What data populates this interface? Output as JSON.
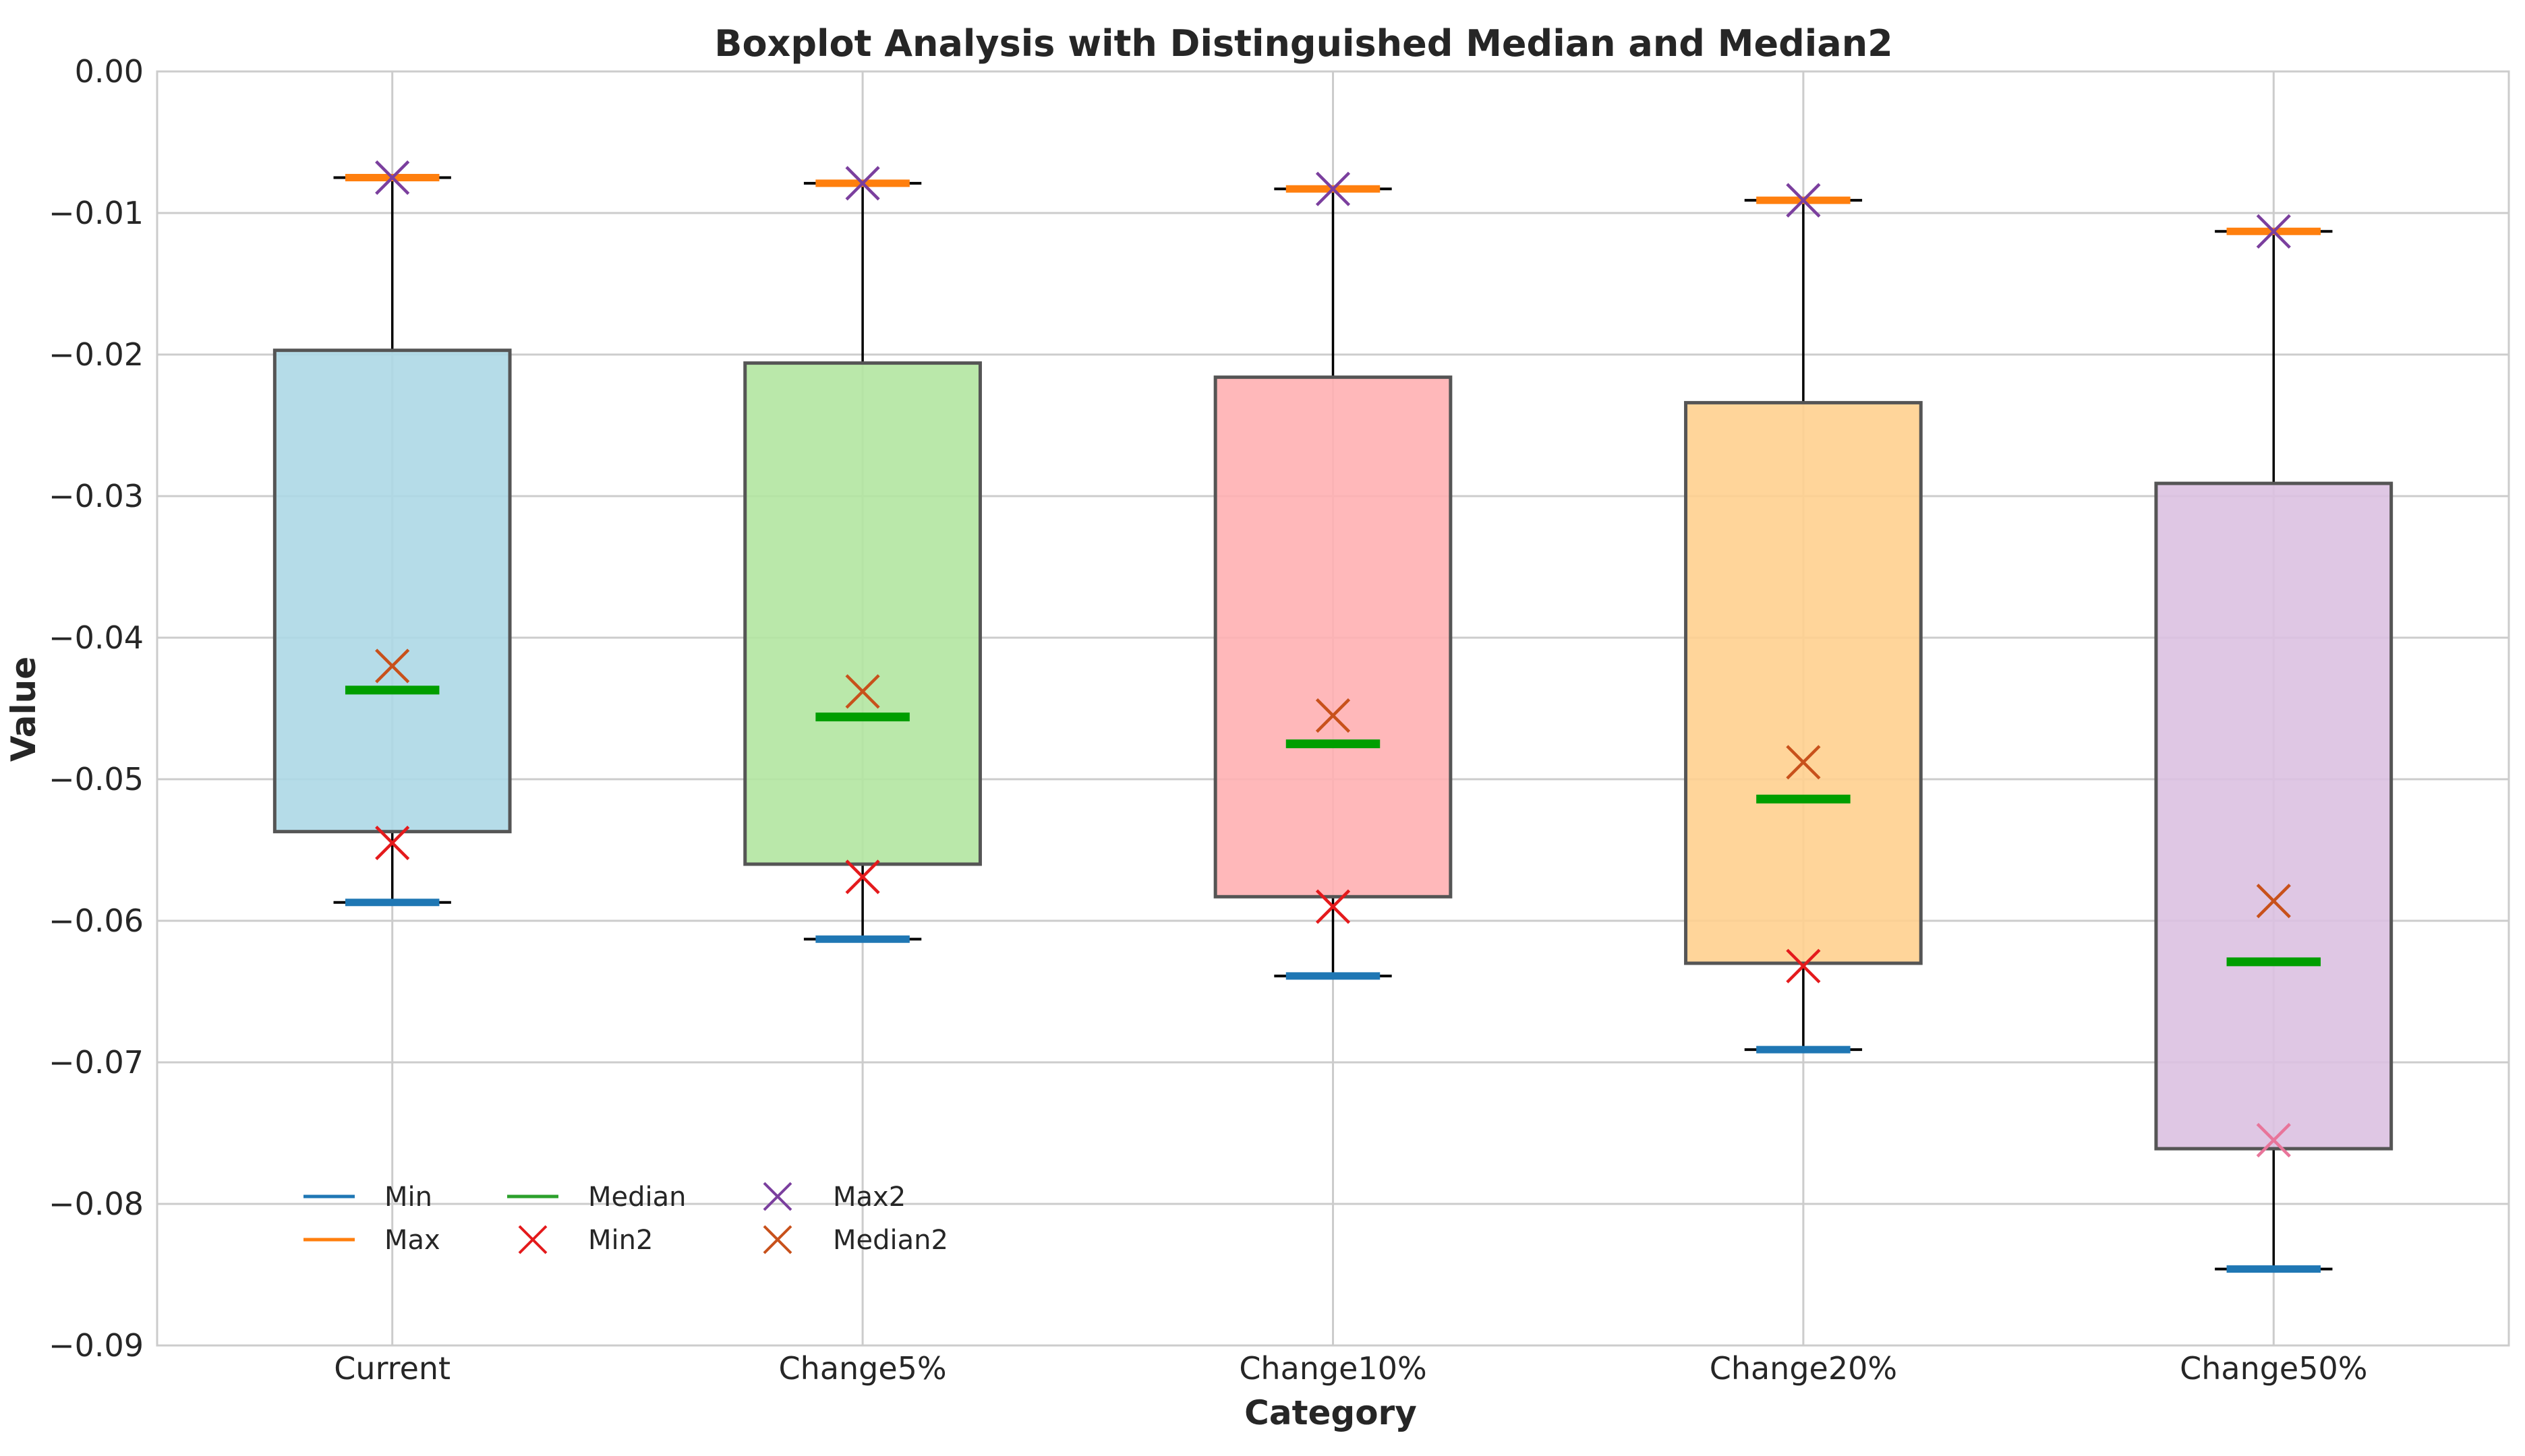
{
  "chart_data": {
    "type": "box",
    "title": "Boxplot Analysis with Distinguished Median and Median2",
    "xlabel": "Category",
    "ylabel": "Value",
    "ylim": [
      -0.09,
      0.0
    ],
    "yticks": [
      0.0,
      -0.01,
      -0.02,
      -0.03,
      -0.04,
      -0.05,
      -0.06,
      -0.07,
      -0.08,
      -0.09
    ],
    "ytick_labels": [
      "0.00",
      "−0.01",
      "−0.02",
      "−0.03",
      "−0.04",
      "−0.05",
      "−0.06",
      "−0.07",
      "−0.08",
      "−0.09"
    ],
    "grid": true,
    "legend_position": "lower-left",
    "categories": [
      "Current",
      "Change5%",
      "Change10%",
      "Change20%",
      "Change50%"
    ],
    "box_colors": [
      "#add8e6",
      "#b3e6a1",
      "#ffb0b3",
      "#ffd08f",
      "#dcc1e1"
    ],
    "series": {
      "min": [
        -0.0587,
        -0.0613,
        -0.0639,
        -0.0691,
        -0.0846
      ],
      "q1": [
        -0.0537,
        -0.056,
        -0.0583,
        -0.063,
        -0.0761
      ],
      "median": [
        -0.0437,
        -0.0456,
        -0.0475,
        -0.0514,
        -0.0629
      ],
      "q3": [
        -0.0197,
        -0.0206,
        -0.0216,
        -0.0234,
        -0.0291
      ],
      "max": [
        -0.0075,
        -0.0079,
        -0.0083,
        -0.0091,
        -0.0113
      ],
      "min2": [
        -0.0545,
        -0.0569,
        -0.059,
        -0.0632,
        -0.0755
      ],
      "median2": [
        -0.042,
        -0.0438,
        -0.0455,
        -0.0488,
        -0.0586
      ],
      "max2": [
        -0.0075,
        -0.0079,
        -0.0083,
        -0.0091,
        -0.0113
      ]
    },
    "legend": [
      {
        "label": "Min",
        "kind": "line",
        "color": "#1f77b4"
      },
      {
        "label": "Max",
        "kind": "line",
        "color": "#ff7f0e"
      },
      {
        "label": "Median",
        "kind": "line",
        "color": "#2ca02c"
      },
      {
        "label": "Min2",
        "kind": "x",
        "color": "#e41a1c"
      },
      {
        "label": "Max2",
        "kind": "x",
        "color": "#7b3f9e"
      },
      {
        "label": "Median2",
        "kind": "x",
        "color": "#c8511b"
      }
    ],
    "marker_colors": {
      "min": "#1f77b4",
      "max": "#ff7f0e",
      "median": "#009e00",
      "min2": "#e41a1c",
      "max2": "#7b3f9e",
      "median2": "#c8511b",
      "min2_on_box": "#e8759a"
    }
  }
}
